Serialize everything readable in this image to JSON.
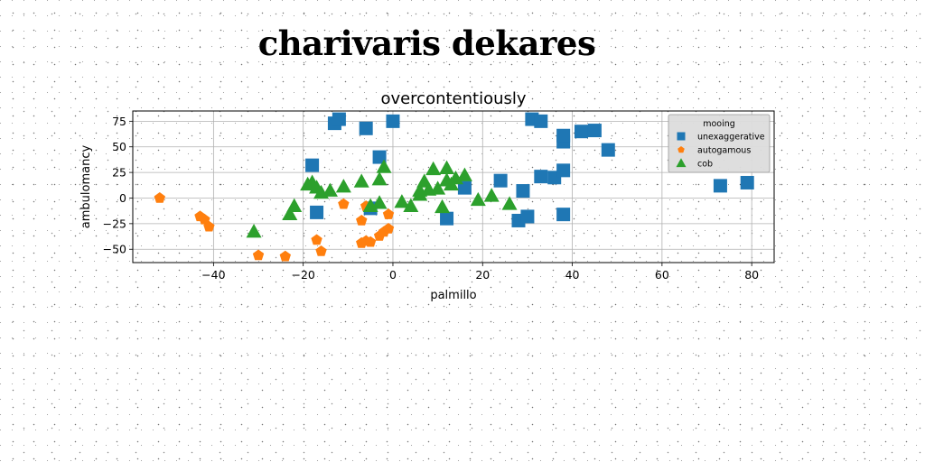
{
  "figure": {
    "title": "charivaris dekares"
  },
  "chart_data": {
    "type": "scatter",
    "title": "overcontentiously",
    "xlabel": "palmillo",
    "ylabel": "ambulomancy",
    "xlim": [
      -58,
      85
    ],
    "ylim": [
      -63,
      85
    ],
    "xticks": [
      -40,
      -20,
      0,
      20,
      40,
      60,
      80
    ],
    "yticks": [
      -50,
      -25,
      0,
      25,
      50,
      75
    ],
    "xtick_labels": [
      "−40",
      "−20",
      "0",
      "20",
      "40",
      "60",
      "80"
    ],
    "ytick_labels": [
      "−50",
      "−25",
      "0",
      "25",
      "50",
      "75"
    ],
    "grid": true,
    "legend": {
      "title": "mooing",
      "position": "upper-right"
    },
    "series": [
      {
        "name": "unexaggerative",
        "marker": "square",
        "color": "#1f77b4",
        "points": [
          [
            -13,
            73
          ],
          [
            -12,
            77
          ],
          [
            -6,
            68
          ],
          [
            0,
            75
          ],
          [
            -3,
            40
          ],
          [
            -18,
            32
          ],
          [
            -17,
            -14
          ],
          [
            -5,
            -10
          ],
          [
            12,
            -20
          ],
          [
            16,
            10
          ],
          [
            24,
            17
          ],
          [
            29,
            7
          ],
          [
            28,
            -22
          ],
          [
            30,
            -18
          ],
          [
            33,
            21
          ],
          [
            36,
            20
          ],
          [
            38,
            27
          ],
          [
            38,
            -16
          ],
          [
            38,
            55
          ],
          [
            38,
            61
          ],
          [
            31,
            77
          ],
          [
            33,
            75
          ],
          [
            42,
            65
          ],
          [
            45,
            66
          ],
          [
            48,
            47
          ],
          [
            73,
            12
          ],
          [
            79,
            15
          ]
        ]
      },
      {
        "name": "autogamous",
        "marker": "pentagon",
        "color": "#ff7f0e",
        "points": [
          [
            -52,
            0
          ],
          [
            -43,
            -18
          ],
          [
            -42,
            -21
          ],
          [
            -41,
            -28
          ],
          [
            -30,
            -56
          ],
          [
            -24,
            -57
          ],
          [
            -17,
            -41
          ],
          [
            -16,
            -52
          ],
          [
            -11,
            -6
          ],
          [
            -7,
            -22
          ],
          [
            -6,
            -8
          ],
          [
            -7,
            -44
          ],
          [
            -6,
            -42
          ],
          [
            -5,
            -43
          ],
          [
            -3,
            -37
          ],
          [
            -2,
            -33
          ],
          [
            -1,
            -30
          ],
          [
            -1,
            -16
          ]
        ]
      },
      {
        "name": "cob",
        "marker": "triangle",
        "color": "#2ca02c",
        "points": [
          [
            -31,
            -33
          ],
          [
            -23,
            -16
          ],
          [
            -22,
            -8
          ],
          [
            -19,
            13
          ],
          [
            -18,
            15
          ],
          [
            -17,
            10
          ],
          [
            -16,
            5
          ],
          [
            -14,
            7
          ],
          [
            -11,
            11
          ],
          [
            -7,
            16
          ],
          [
            -5,
            -8
          ],
          [
            -3,
            18
          ],
          [
            -2,
            30
          ],
          [
            -3,
            -5
          ],
          [
            2,
            -4
          ],
          [
            4,
            -8
          ],
          [
            6,
            3
          ],
          [
            6,
            7
          ],
          [
            7,
            16
          ],
          [
            8,
            8
          ],
          [
            9,
            28
          ],
          [
            10,
            9
          ],
          [
            11,
            -9
          ],
          [
            12,
            29
          ],
          [
            12,
            17
          ],
          [
            13,
            13
          ],
          [
            14,
            19
          ],
          [
            16,
            22
          ],
          [
            19,
            -2
          ],
          [
            22,
            2
          ],
          [
            26,
            -6
          ]
        ]
      }
    ]
  }
}
